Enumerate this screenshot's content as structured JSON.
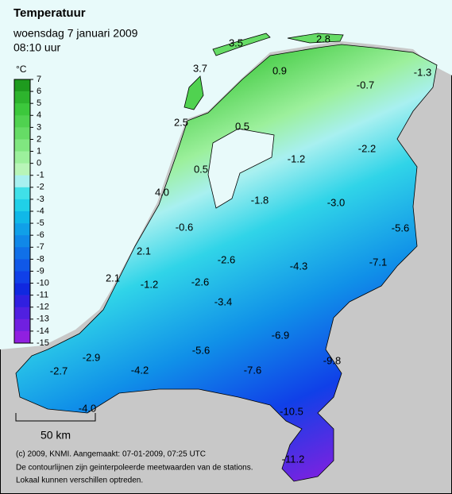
{
  "header": {
    "title": "Temperatuur",
    "date": "woensdag 7 januari 2009",
    "time": "08:10 uur"
  },
  "legend": {
    "unit": "°C",
    "ticks": [
      7,
      6,
      5,
      4,
      3,
      2,
      1,
      0,
      -1,
      -2,
      -3,
      -4,
      -5,
      -6,
      -7,
      -8,
      -9,
      -10,
      -11,
      -12,
      -13,
      -14,
      -15
    ],
    "colors": [
      "#1e9b1e",
      "#2db42d",
      "#3cc83c",
      "#50d250",
      "#66dc66",
      "#80e680",
      "#9cf09c",
      "#b8f5b8",
      "#a8f0f0",
      "#40e0e8",
      "#20d0e8",
      "#10b8e8",
      "#10a0e8",
      "#1088e8",
      "#1070e8",
      "#1058e8",
      "#1040e8",
      "#1028e0",
      "#3020e0",
      "#5020e0",
      "#7020e0",
      "#9020e0"
    ]
  },
  "stations": [
    "3.5",
    "2.8",
    "3.7",
    "0.9",
    "-0.7",
    "-1.3",
    "2.5",
    "0.5",
    "0.5",
    "-1.2",
    "-2.2",
    "4.0",
    "-1.8",
    "-3.0",
    "-0.6",
    "-5.6",
    "2.1",
    "-2.6",
    "-4.3",
    "-7.1",
    "2.1",
    "-1.2",
    "-2.6",
    "-3.4",
    "-6.9",
    "-2.9",
    "-5.6",
    "-9.8",
    "-2.7",
    "-4.2",
    "-7.6",
    "-4.0",
    "-10.5",
    "-11.2"
  ],
  "scale_bar": "50 km",
  "footer": [
    "(c) 2009, KNMI. Aangemaakt: 07-01-2009, 07:25 UTC",
    "De contourlijnen zijn geinterpoleerde meetwaarden van de stations.",
    "Lokaal kunnen verschillen optreden."
  ]
}
